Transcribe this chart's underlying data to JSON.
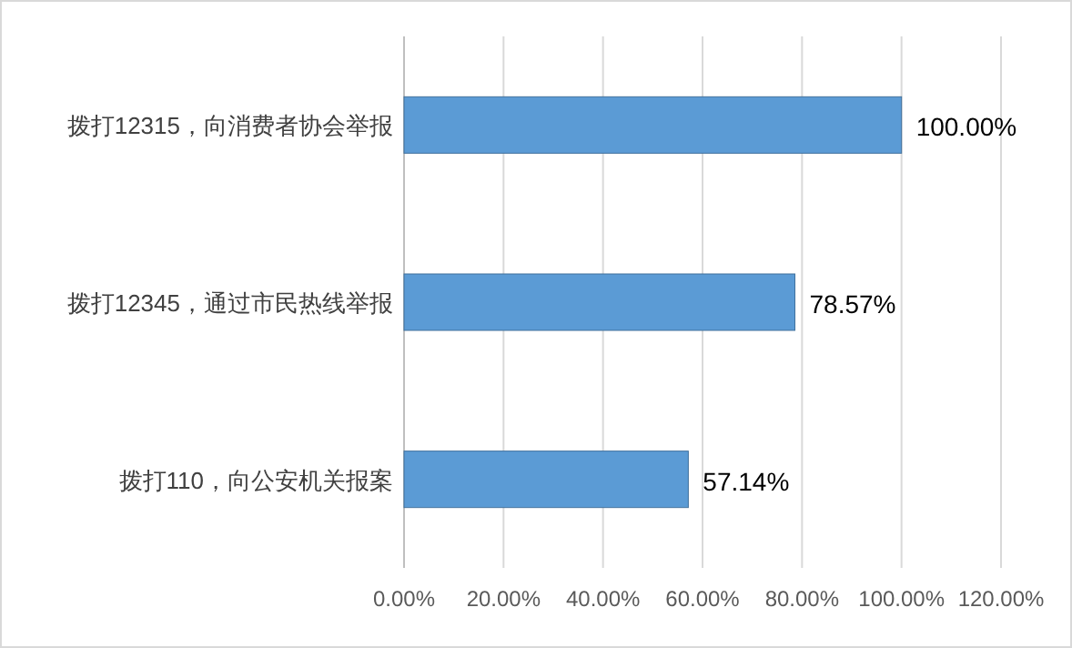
{
  "chart_data": {
    "type": "bar",
    "orientation": "horizontal",
    "categories": [
      "拨打12315，向消费者协会举报",
      "拨打12345，通过市民热线举报",
      "拨打110，向公安机关报案"
    ],
    "values": [
      100,
      78.57,
      57.14
    ],
    "value_labels": [
      "100.00%",
      "78.57%",
      "57.14%"
    ],
    "color": "#5b9bd5",
    "xlim": [
      0,
      120
    ],
    "xticks": [
      {
        "value": 0,
        "label": "0.00%"
      },
      {
        "value": 20,
        "label": "20.00%"
      },
      {
        "value": 40,
        "label": "40.00%"
      },
      {
        "value": 60,
        "label": "60.00%"
      },
      {
        "value": 80,
        "label": "80.00%"
      },
      {
        "value": 100,
        "label": "100.00%"
      },
      {
        "value": 120,
        "label": "120.00%"
      }
    ],
    "grid": "x"
  }
}
